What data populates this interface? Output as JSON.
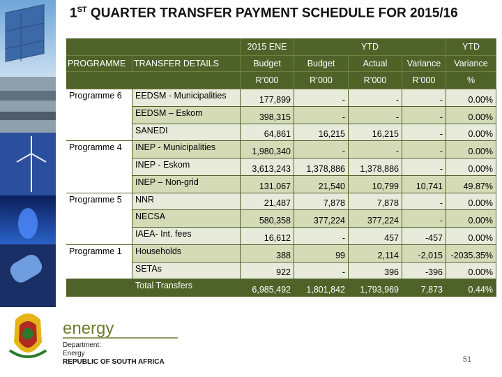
{
  "title": {
    "prefix": "1",
    "superscript": "ST",
    "main": " QUARTER TRANSFER PAYMENT SCHEDULE FOR 2015/16"
  },
  "table": {
    "header_top": [
      {
        "text": "2015 ENE",
        "from": 2,
        "to": 3
      },
      {
        "text": "YTD",
        "from": 3,
        "to": 6
      },
      {
        "text": "YTD",
        "from": 6,
        "to": 7
      }
    ],
    "header_names": [
      "PROGRAMME",
      "TRANSFER DETAILS",
      "Budget",
      "Budget",
      "Actual",
      "Variance",
      "Variance"
    ],
    "header_units": [
      "R’000",
      "R’000",
      "R’000",
      "R’000",
      "%"
    ],
    "groups": [
      {
        "programme": "Programme 6",
        "rows": [
          [
            "EEDSM - Municipalities",
            "177,899",
            "-",
            "-",
            "-",
            "0.00%"
          ],
          [
            "EEDSM – Eskom",
            "398,315",
            "-",
            "-",
            "-",
            "0.00%"
          ],
          [
            "SANEDI",
            "64,861",
            "16,215",
            "16,215",
            "-",
            "0.00%"
          ]
        ]
      },
      {
        "programme": "Programme 4",
        "rows": [
          [
            "INEP - Municipalities",
            "1,980,340",
            "-",
            "-",
            "-",
            "0.00%"
          ],
          [
            "INEP - Eskom",
            "3,613,243",
            "1,378,886",
            "1,378,886",
            "-",
            "0.00%"
          ],
          [
            "INEP – Non-grid",
            "131,067",
            "21,540",
            "10,799",
            "10,741",
            "49.87%"
          ]
        ]
      },
      {
        "programme": "Programme 5",
        "rows": [
          [
            "NNR",
            "21,487",
            "7,878",
            "7,878",
            "-",
            "0.00%"
          ],
          [
            "NECSA",
            "580,358",
            "377,224",
            "377,224",
            "-",
            "0.00%"
          ],
          [
            "IAEA- Int. fees",
            "16,612",
            "-",
            "457",
            "-457",
            "0.00%"
          ]
        ]
      },
      {
        "programme": "Programme 1",
        "rows": [
          [
            "Households",
            "388",
            "99",
            "2,114",
            "-2,015",
            "-2035.35%"
          ],
          [
            "SETAs",
            "922",
            "-",
            "396",
            "-396",
            "0.00%"
          ]
        ]
      }
    ],
    "total": [
      "Total Transfers",
      "6,985,492",
      "1,801,842",
      "1,793,969",
      "7,873",
      "0.44%"
    ]
  },
  "footer": {
    "brand": "energy",
    "line1": "Department:",
    "line2": "Energy",
    "line3": "REPUBLIC OF SOUTH AFRICA",
    "page": "51"
  }
}
